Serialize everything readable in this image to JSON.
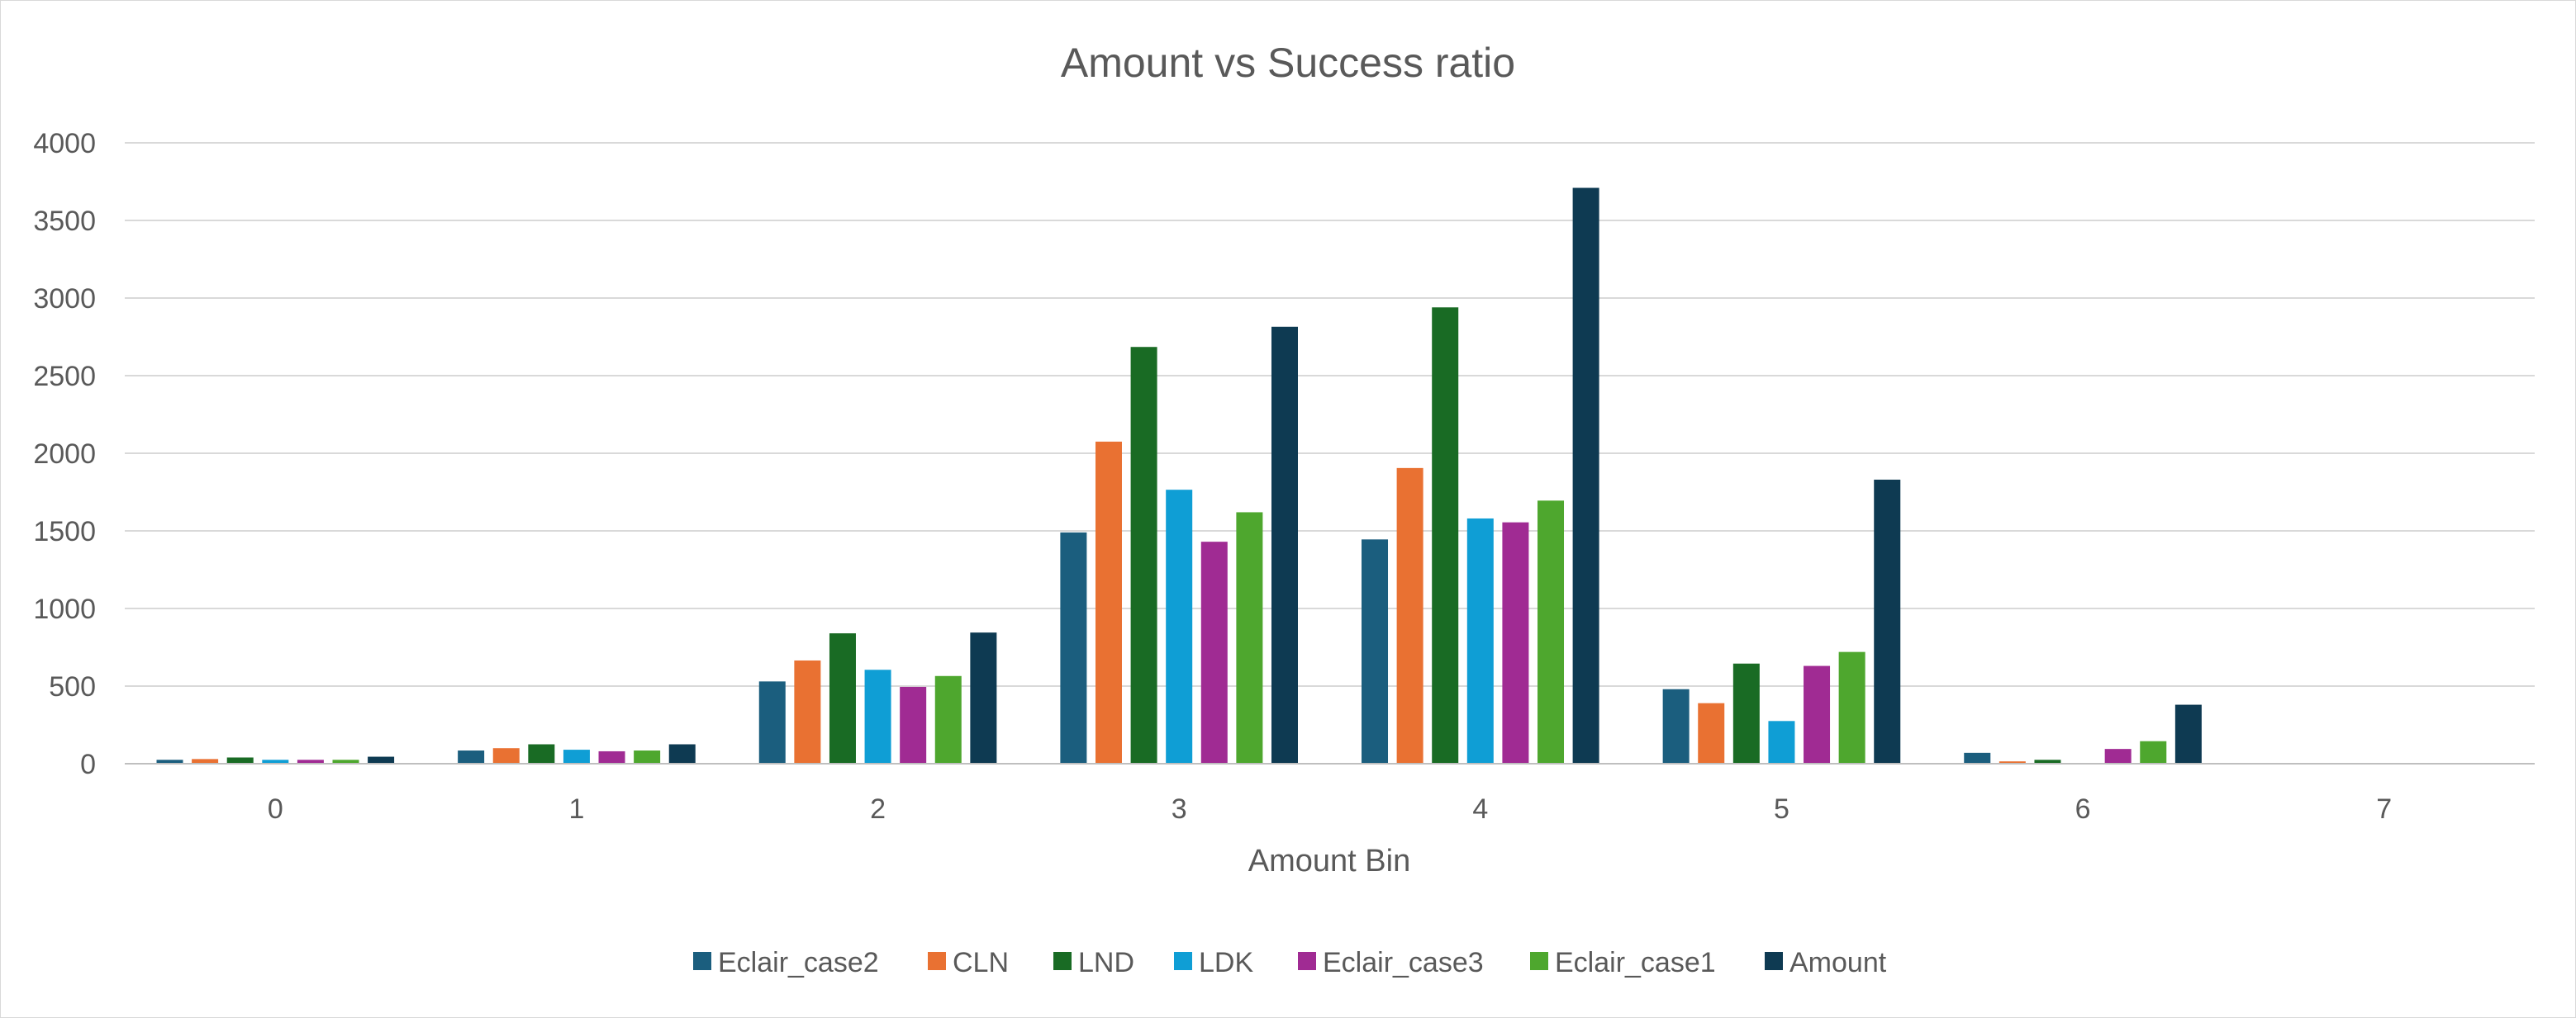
{
  "chart_data": {
    "type": "bar",
    "title": "Amount vs Success ratio",
    "xlabel": "Amount Bin",
    "ylabel": "",
    "ylim": [
      0,
      4000
    ],
    "yticks": [
      "0",
      "500",
      "1000",
      "1500",
      "2000",
      "2500",
      "3000",
      "3500",
      "4000"
    ],
    "categories": [
      "0",
      "1",
      "2",
      "3",
      "4",
      "5",
      "6",
      "7"
    ],
    "grid": true,
    "legend_position": "bottom",
    "series": [
      {
        "name": "Eclair_case2",
        "color": "#1b5e7e",
        "values": [
          25,
          85,
          530,
          1490,
          1445,
          480,
          70,
          0
        ]
      },
      {
        "name": "CLN",
        "color": "#e97132",
        "values": [
          30,
          100,
          665,
          2075,
          1905,
          390,
          15,
          0
        ]
      },
      {
        "name": "LND",
        "color": "#196b24",
        "values": [
          40,
          125,
          840,
          2685,
          2940,
          645,
          25,
          0
        ]
      },
      {
        "name": "LDK",
        "color": "#0f9ed5",
        "values": [
          25,
          90,
          605,
          1765,
          1580,
          275,
          0,
          0
        ]
      },
      {
        "name": "Eclair_case3",
        "color": "#a02b93",
        "values": [
          25,
          80,
          495,
          1430,
          1555,
          630,
          95,
          0
        ]
      },
      {
        "name": "Eclair_case1",
        "color": "#4ea72e",
        "values": [
          25,
          85,
          565,
          1620,
          1695,
          720,
          145,
          0
        ]
      },
      {
        "name": "Amount",
        "color": "#0e3a52",
        "values": [
          45,
          125,
          845,
          2815,
          3710,
          1830,
          380,
          0
        ]
      }
    ]
  }
}
